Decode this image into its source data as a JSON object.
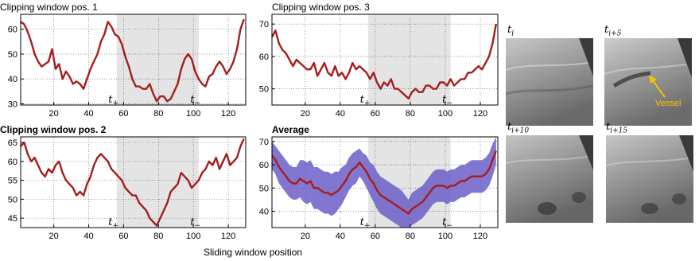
{
  "colors": {
    "series": "#a61d1d",
    "band": "#6b5fc8",
    "shade": "#e4e4e4",
    "vessel_arrow": "#f3c400"
  },
  "xlabel": "Sliding window position",
  "chart_data": [
    {
      "type": "line",
      "title": "Clipping window pos. 1",
      "xlim": [
        1,
        130
      ],
      "ylim": [
        29.5,
        66
      ],
      "xticks": [
        20,
        40,
        60,
        80,
        100,
        120
      ],
      "yticks": [
        30,
        40,
        50,
        60
      ],
      "shaded_range": [
        56,
        103
      ],
      "grid": true,
      "annotations": [
        {
          "text": "t+",
          "x": 56
        },
        {
          "text": "t−",
          "x": 103
        }
      ],
      "series": [
        {
          "x": [
            1,
            3,
            5,
            7,
            9,
            11,
            13,
            15,
            17,
            19,
            21,
            23,
            25,
            27,
            29,
            31,
            33,
            35,
            37,
            39,
            41,
            43,
            45,
            47,
            49,
            51,
            53,
            55,
            57,
            59,
            61,
            63,
            65,
            67,
            69,
            71,
            73,
            75,
            77,
            79,
            81,
            83,
            85,
            87,
            89,
            91,
            93,
            95,
            97,
            99,
            101,
            103,
            105,
            107,
            109,
            111,
            113,
            115,
            117,
            119,
            121,
            123,
            125,
            127,
            129
          ],
          "y": [
            63,
            62,
            59,
            55,
            50,
            47,
            45,
            46,
            47,
            52,
            44,
            46,
            40,
            43,
            41,
            38,
            39,
            38,
            36,
            40,
            44,
            47,
            50,
            55,
            58,
            63,
            61,
            58,
            57,
            54,
            49,
            45,
            40,
            37,
            37,
            36,
            36,
            38,
            34,
            31,
            33,
            33,
            31,
            32,
            35,
            38,
            44,
            48,
            50,
            48,
            43,
            40,
            38,
            37,
            41,
            42,
            45,
            47,
            45,
            42,
            44,
            47,
            52,
            60,
            64
          ]
        }
      ]
    },
    {
      "type": "line",
      "title": "Clipping window pos. 3",
      "xlim": [
        1,
        130
      ],
      "ylim": [
        45,
        73
      ],
      "xticks": [
        20,
        40,
        60,
        80,
        100,
        120
      ],
      "yticks": [
        50,
        60,
        70
      ],
      "shaded_range": [
        56,
        103
      ],
      "grid": true,
      "annotations": [
        {
          "text": "t+",
          "x": 56
        },
        {
          "text": "t−",
          "x": 103
        }
      ],
      "series": [
        {
          "x": [
            1,
            3,
            5,
            7,
            9,
            11,
            13,
            15,
            17,
            19,
            21,
            23,
            25,
            27,
            29,
            31,
            33,
            35,
            37,
            39,
            41,
            43,
            45,
            47,
            49,
            51,
            53,
            55,
            57,
            59,
            61,
            63,
            65,
            67,
            69,
            71,
            73,
            75,
            77,
            79,
            81,
            83,
            85,
            87,
            89,
            91,
            93,
            95,
            97,
            99,
            101,
            103,
            105,
            107,
            109,
            111,
            113,
            115,
            117,
            119,
            121,
            123,
            125,
            127,
            129
          ],
          "y": [
            66,
            68,
            64,
            62,
            61,
            59,
            57,
            59,
            58,
            57,
            56,
            56,
            58,
            54,
            56,
            58,
            55,
            54,
            57,
            54,
            55,
            53,
            55,
            58,
            56,
            57,
            56,
            55,
            53,
            55,
            52,
            50,
            52,
            51,
            53,
            50,
            50,
            49,
            48,
            47,
            49,
            50,
            49,
            49,
            51,
            51,
            50,
            50,
            52,
            52,
            51,
            53,
            51,
            52,
            53,
            53,
            55,
            55,
            56,
            57,
            56,
            58,
            60,
            64,
            70
          ]
        }
      ]
    },
    {
      "type": "line",
      "title": "Clipping window pos. 2",
      "xlim": [
        1,
        130
      ],
      "ylim": [
        42.5,
        66.5
      ],
      "xticks": [
        20,
        40,
        60,
        80,
        100,
        120
      ],
      "yticks": [
        45,
        50,
        55,
        60,
        65
      ],
      "shaded_range": [
        56,
        103
      ],
      "grid": true,
      "annotations": [
        {
          "text": "t+",
          "x": 56
        },
        {
          "text": "t−",
          "x": 103
        }
      ],
      "series": [
        {
          "x": [
            1,
            3,
            5,
            7,
            9,
            11,
            13,
            15,
            17,
            19,
            21,
            23,
            25,
            27,
            29,
            31,
            33,
            35,
            37,
            39,
            41,
            43,
            45,
            47,
            49,
            51,
            53,
            55,
            57,
            59,
            61,
            63,
            65,
            67,
            69,
            71,
            73,
            75,
            77,
            79,
            81,
            83,
            85,
            87,
            89,
            91,
            93,
            95,
            97,
            99,
            101,
            103,
            105,
            107,
            109,
            111,
            113,
            115,
            117,
            119,
            121,
            123,
            125,
            127,
            129
          ],
          "y": [
            64,
            65,
            62,
            60,
            61,
            59,
            57,
            56,
            58,
            57,
            59,
            60,
            57,
            55,
            54,
            53,
            51,
            52,
            51,
            54,
            56,
            59,
            61,
            62,
            61,
            60,
            58,
            57,
            56,
            55,
            53,
            52,
            51,
            51,
            49,
            48,
            47,
            45,
            44,
            43,
            45,
            47,
            49,
            52,
            53,
            54,
            57,
            56,
            55,
            53,
            54,
            55,
            57,
            58,
            60,
            59,
            61,
            58,
            60,
            62,
            59,
            60,
            61,
            64,
            66
          ]
        }
      ]
    },
    {
      "type": "area",
      "title": "Average",
      "xlim": [
        1,
        130
      ],
      "ylim": [
        33,
        72
      ],
      "xticks": [
        20,
        40,
        60,
        80,
        100,
        120
      ],
      "yticks": [
        40,
        50,
        60,
        70
      ],
      "shaded_range": [
        56,
        103
      ],
      "grid": true,
      "annotations": [
        {
          "text": "t+",
          "x": 56
        },
        {
          "text": "t−",
          "x": 103
        }
      ],
      "series": [
        {
          "x": [
            1,
            3,
            5,
            7,
            9,
            11,
            13,
            15,
            17,
            19,
            21,
            23,
            25,
            27,
            29,
            31,
            33,
            35,
            37,
            39,
            41,
            43,
            45,
            47,
            49,
            51,
            53,
            55,
            57,
            59,
            61,
            63,
            65,
            67,
            69,
            71,
            73,
            75,
            77,
            79,
            81,
            83,
            85,
            87,
            89,
            91,
            93,
            95,
            97,
            99,
            101,
            103,
            105,
            107,
            109,
            111,
            113,
            115,
            117,
            119,
            121,
            123,
            125,
            127,
            129
          ],
          "y": [
            64,
            62,
            59,
            57,
            55,
            53,
            52,
            52,
            54,
            53,
            52,
            53,
            50,
            50,
            49,
            48,
            48,
            47,
            48,
            49,
            51,
            53,
            56,
            58,
            59,
            61,
            59,
            57,
            54,
            52,
            49,
            47,
            46,
            45,
            44,
            43,
            42,
            41,
            40,
            39,
            41,
            42,
            43,
            44,
            46,
            48,
            50,
            51,
            51,
            51,
            50,
            51,
            51,
            52,
            53,
            53,
            54,
            55,
            55,
            55,
            55,
            56,
            58,
            62,
            66
          ],
          "lower": [
            58,
            56,
            52,
            50,
            48,
            46,
            45,
            45,
            46,
            44,
            43,
            44,
            41,
            41,
            40,
            39,
            39,
            38,
            39,
            41,
            43,
            46,
            49,
            51,
            52,
            55,
            53,
            50,
            47,
            44,
            41,
            39,
            38,
            37,
            36,
            35,
            34,
            33,
            33,
            33,
            34,
            35,
            36,
            37,
            39,
            41,
            43,
            44,
            44,
            44,
            43,
            44,
            44,
            45,
            46,
            46,
            47,
            48,
            48,
            48,
            48,
            49,
            51,
            55,
            60
          ],
          "upper": [
            70,
            68,
            66,
            64,
            62,
            60,
            59,
            59,
            62,
            62,
            61,
            62,
            59,
            59,
            58,
            57,
            57,
            56,
            57,
            57,
            59,
            60,
            63,
            65,
            66,
            67,
            65,
            64,
            61,
            60,
            57,
            55,
            54,
            53,
            52,
            51,
            50,
            49,
            47,
            45,
            48,
            49,
            50,
            51,
            53,
            55,
            57,
            58,
            58,
            58,
            57,
            58,
            58,
            59,
            60,
            60,
            61,
            62,
            62,
            62,
            62,
            63,
            65,
            69,
            72
          ]
        }
      ]
    }
  ],
  "frames": [
    {
      "label_base": "t",
      "label_sub": "i"
    },
    {
      "label_base": "t",
      "label_sub": "i+5",
      "annotation": "Vessel"
    },
    {
      "label_base": "t",
      "label_sub": "i+10"
    },
    {
      "label_base": "t",
      "label_sub": "i+15"
    }
  ]
}
